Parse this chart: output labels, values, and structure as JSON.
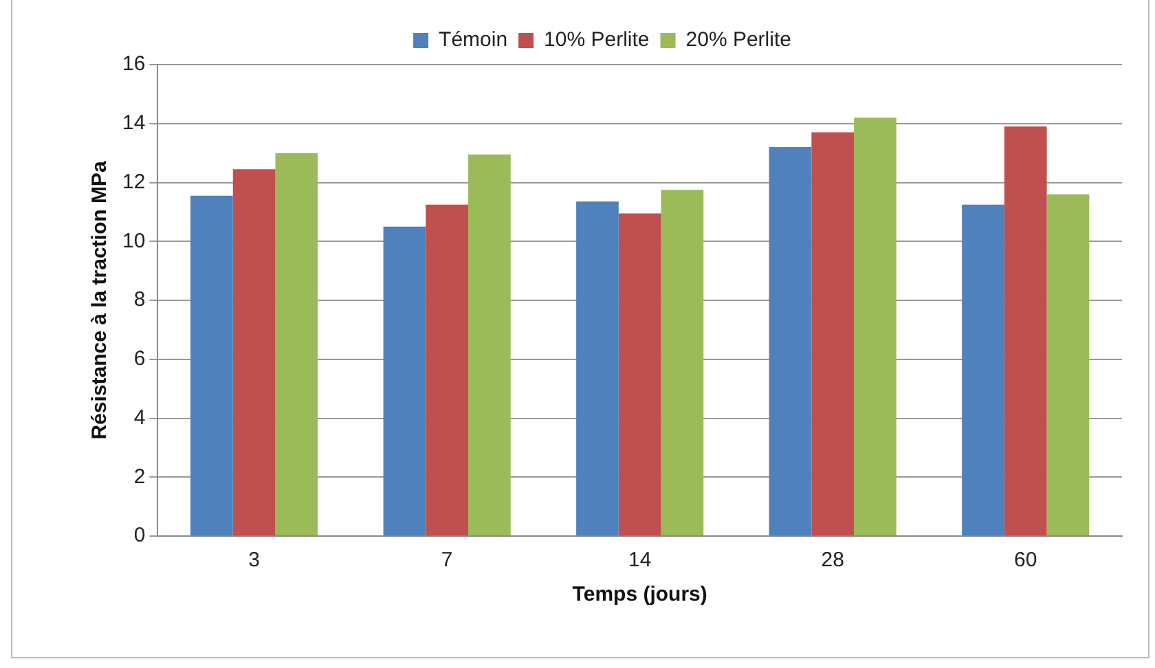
{
  "chart_data": {
    "type": "bar",
    "xlabel": "Temps (jours)",
    "ylabel": "Résistance à la traction MPa",
    "categories": [
      "3",
      "7",
      "14",
      "28",
      "60"
    ],
    "series": [
      {
        "name": "Témoin",
        "color": "#4f81bd",
        "values": [
          11.55,
          10.5,
          11.35,
          13.2,
          11.25
        ]
      },
      {
        "name": "10% Perlite",
        "color": "#c0504d",
        "values": [
          12.45,
          11.25,
          10.95,
          13.7,
          13.9
        ]
      },
      {
        "name": "20% Perlite",
        "color": "#9bbb59",
        "values": [
          13.0,
          12.95,
          11.75,
          14.2,
          11.6
        ]
      }
    ],
    "ylim": [
      0,
      16
    ],
    "yticks": [
      0,
      2,
      4,
      6,
      8,
      10,
      12,
      14,
      16
    ],
    "grid": "y",
    "legend": "top"
  }
}
